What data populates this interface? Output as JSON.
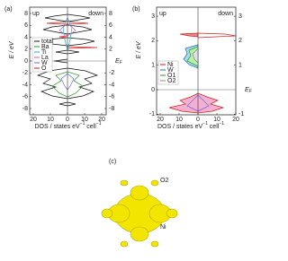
{
  "figure": {
    "a": {
      "label": "(a)",
      "up": "up",
      "down": "down",
      "ylabel": "E / eV",
      "fermi": "E",
      "fermi_sub": "F",
      "xlabel": "DOS / states eV",
      "xlabel_sup": "−1",
      "xlabel_end": " cell",
      "xlabel_end_sup": "−1",
      "yticks": [
        8,
        6,
        4,
        2,
        0,
        -2,
        -4,
        -6,
        -8
      ],
      "xticks": [
        20,
        10,
        0,
        10,
        20
      ],
      "legend": [
        "total",
        "Ba",
        "Ti",
        "La",
        "W",
        "O"
      ]
    },
    "b": {
      "label": "(b)",
      "up": "up",
      "down": "down",
      "ylabel": "E / eV",
      "fermi": "E",
      "fermi_sub": "F",
      "xlabel": "DOS / states eV",
      "xlabel_sup": "−1",
      "xlabel_end": " cell",
      "xlabel_end_sup": "−1",
      "yticks": [
        3,
        2,
        1,
        0,
        -1
      ],
      "xticks": [
        20,
        10,
        0,
        10,
        20
      ],
      "legend": [
        "Ni",
        "W",
        "O1",
        "O2"
      ]
    },
    "c": {
      "label": "(c)",
      "o2": "O2",
      "ni": "Ni"
    }
  }
}
